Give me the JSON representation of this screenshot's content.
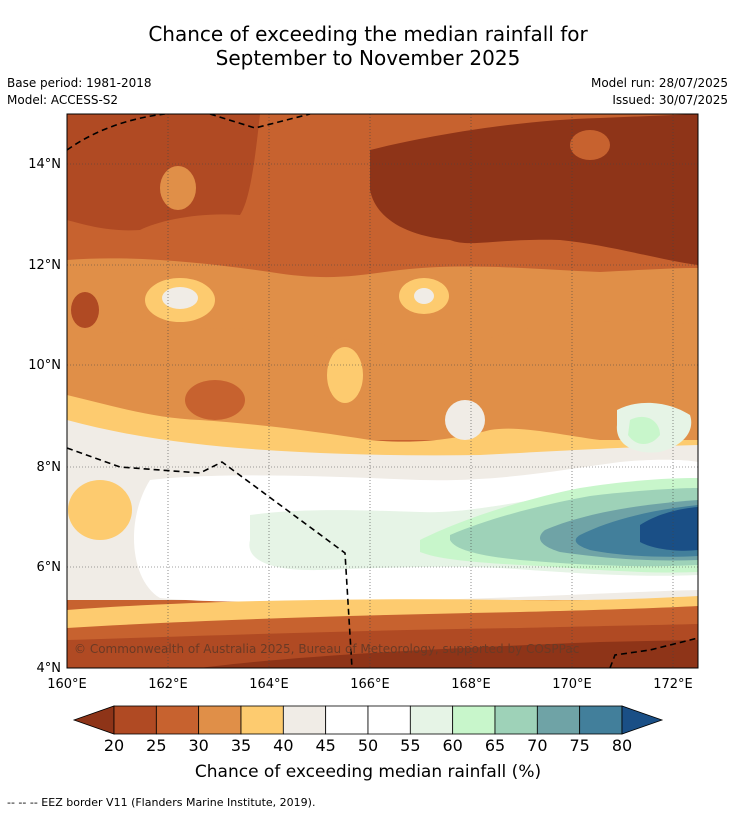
{
  "title_line1": "Chance of exceeding the median rainfall for",
  "title_line2": "September to November 2025",
  "meta": {
    "base_period": "Base period: 1981-2018",
    "model": "Model: ACCESS-S2",
    "model_run": "Model run: 28/07/2025",
    "issued": "Issued: 30/07/2025"
  },
  "map": {
    "lat_labels": [
      "14°N",
      "12°N",
      "10°N",
      "8°N",
      "6°N",
      "4°N"
    ],
    "lon_labels": [
      "160°E",
      "162°E",
      "164°E",
      "166°E",
      "168°E",
      "170°E",
      "172°E"
    ],
    "copyright": "© Commonwealth of Australia 2025, Bureau of Meteorology, supported by COSPPac"
  },
  "colorbar": {
    "ticks": [
      "20",
      "25",
      "30",
      "35",
      "40",
      "45",
      "50",
      "55",
      "60",
      "65",
      "70",
      "75",
      "80"
    ],
    "colors": [
      "#8e3418",
      "#b04a23",
      "#c7622f",
      "#e08f48",
      "#fdcb6f",
      "#f0ece6",
      "#ffffff",
      "#ffffff",
      "#e6f4e6",
      "#c8f6cb",
      "#9ed2b8",
      "#6fa3a6",
      "#427f9b",
      "#1a4f86"
    ],
    "label": "Chance of exceeding median rainfall (%)"
  },
  "legend_note": "--  --  -- EEZ border V11 (Flanders Marine Institute, 2019)."
}
